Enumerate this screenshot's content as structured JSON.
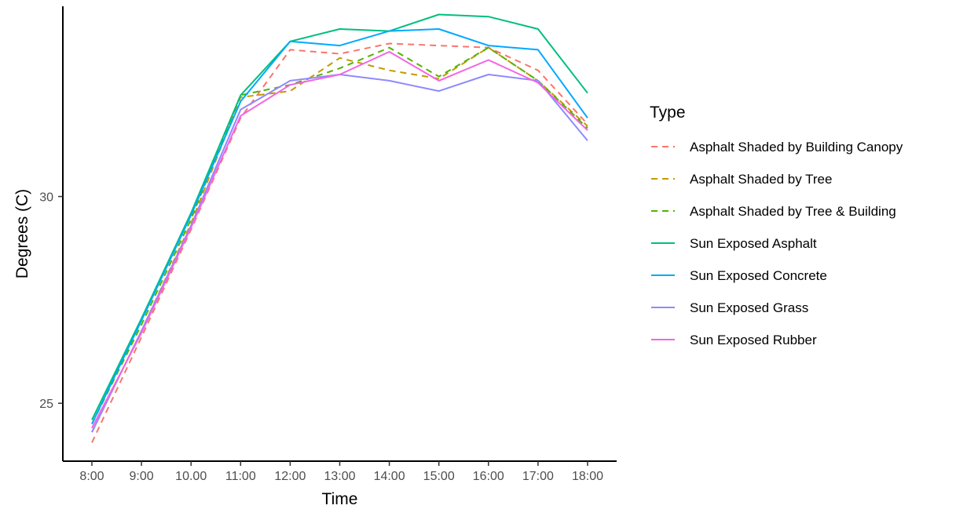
{
  "chart_data": {
    "type": "line",
    "title": "",
    "xlabel": "Time",
    "ylabel": "Degrees (C)",
    "categories": [
      "8:00",
      "9:00",
      "10.00",
      "11:00",
      "12:00",
      "13:00",
      "14:00",
      "15:00",
      "16:00",
      "17:00",
      "18:00"
    ],
    "yticks": [
      25,
      30
    ],
    "ylim": [
      23.6,
      34.6
    ],
    "grid": false,
    "legend": {
      "title": "Type",
      "position": "right"
    },
    "series": [
      {
        "name": "Asphalt Shaded by Building Canopy",
        "color": "#F8766D",
        "dash": "dashed",
        "values": [
          24.05,
          26.6,
          29.2,
          31.9,
          33.55,
          33.45,
          33.7,
          33.65,
          33.6,
          33.05,
          31.75
        ]
      },
      {
        "name": "Asphalt Shaded by Tree",
        "color": "#C49A00",
        "dash": "dashed",
        "values": [
          24.3,
          26.75,
          29.35,
          32.4,
          32.55,
          33.35,
          33.05,
          32.85,
          33.6,
          32.8,
          31.7
        ]
      },
      {
        "name": "Asphalt Shaded by Tree & Building",
        "color": "#53B400",
        "dash": "dashed",
        "values": [
          24.5,
          26.9,
          29.45,
          32.45,
          32.7,
          33.1,
          33.6,
          32.9,
          33.6,
          32.8,
          31.65
        ]
      },
      {
        "name": "Sun Exposed Asphalt",
        "color": "#00BF7D",
        "dash": "solid",
        "values": [
          24.6,
          27.05,
          29.6,
          32.45,
          33.75,
          34.05,
          34.0,
          34.4,
          34.35,
          34.05,
          32.5
        ]
      },
      {
        "name": "Sun Exposed Concrete",
        "color": "#00A9FF",
        "dash": "solid",
        "values": [
          24.5,
          27.0,
          29.55,
          32.3,
          33.75,
          33.65,
          34.0,
          34.05,
          33.65,
          33.55,
          31.9
        ]
      },
      {
        "name": "Sun Exposed Grass",
        "color": "#8F8AFF",
        "dash": "solid",
        "values": [
          24.3,
          26.75,
          29.3,
          32.1,
          32.8,
          32.95,
          32.8,
          32.55,
          32.95,
          32.8,
          31.35
        ]
      },
      {
        "name": "Sun Exposed Rubber",
        "color": "#F564E3",
        "dash": "solid",
        "values": [
          24.4,
          26.7,
          29.25,
          31.95,
          32.7,
          32.95,
          33.5,
          32.8,
          33.3,
          32.75,
          31.6
        ]
      }
    ]
  }
}
